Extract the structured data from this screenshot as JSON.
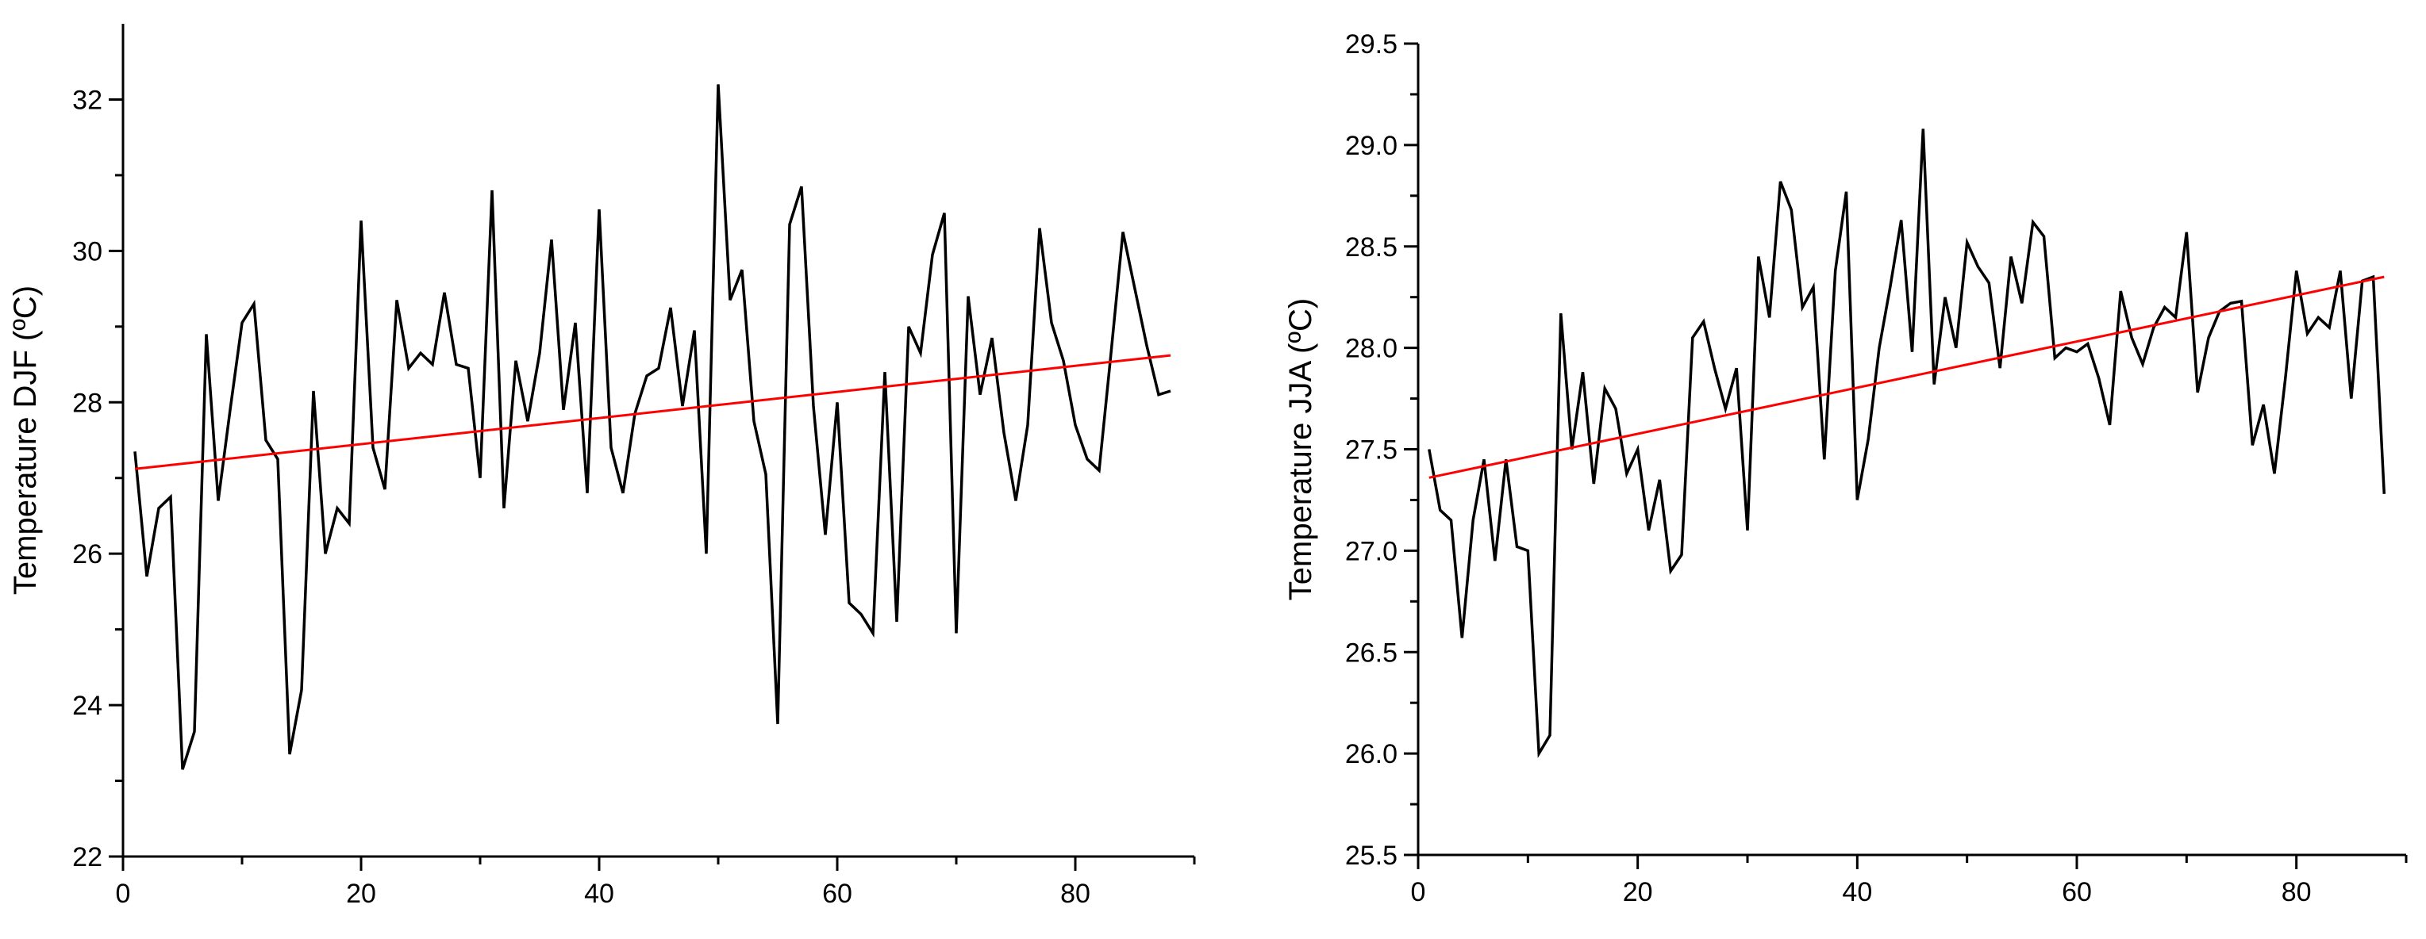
{
  "chart_data": [
    {
      "type": "line",
      "title": "",
      "xlabel": "",
      "ylabel": "Temperature DJF (ºC)",
      "xlim": [
        0,
        90
      ],
      "ylim": [
        22,
        33
      ],
      "x_ticks": [
        "0",
        "20",
        "40",
        "60",
        "80"
      ],
      "y_ticks": [
        "22",
        "24",
        "26",
        "28",
        "30",
        "32"
      ],
      "grid": false,
      "legend": "none",
      "series": [
        {
          "color": "#000000",
          "x": [
            1,
            2,
            3,
            4,
            5,
            6,
            7,
            8,
            9,
            10,
            11,
            12,
            13,
            14,
            15,
            16,
            17,
            18,
            19,
            20,
            21,
            22,
            23,
            24,
            25,
            26,
            27,
            28,
            29,
            30,
            31,
            32,
            33,
            34,
            35,
            36,
            37,
            38,
            39,
            40,
            41,
            42,
            43,
            44,
            45,
            46,
            47,
            48,
            49,
            50,
            51,
            52,
            53,
            54,
            55,
            56,
            57,
            58,
            59,
            60,
            61,
            62,
            63,
            64,
            65,
            66,
            67,
            68,
            69,
            70,
            71,
            72,
            73,
            74,
            75,
            76,
            77,
            78,
            79,
            80,
            81,
            82,
            83,
            84,
            85,
            86,
            87,
            88
          ],
          "values": [
            27.35,
            25.7,
            26.6,
            26.75,
            23.15,
            23.65,
            28.9,
            26.7,
            27.9,
            29.05,
            29.3,
            27.5,
            27.25,
            23.35,
            24.2,
            28.15,
            26.0,
            26.6,
            26.4,
            30.4,
            27.4,
            26.85,
            29.35,
            28.45,
            28.65,
            28.5,
            29.45,
            28.5,
            28.45,
            27.0,
            30.8,
            26.6,
            28.55,
            27.75,
            28.65,
            30.15,
            27.9,
            29.05,
            26.8,
            30.55,
            27.4,
            26.8,
            27.85,
            28.35,
            28.45,
            29.25,
            27.95,
            28.95,
            26.0,
            32.2,
            29.35,
            29.75,
            27.75,
            27.05,
            23.75,
            30.35,
            30.85,
            27.95,
            26.25,
            28.0,
            25.35,
            25.2,
            24.95,
            28.4,
            25.1,
            29.0,
            28.65,
            29.95,
            30.5,
            24.95,
            29.4,
            28.1,
            28.85,
            27.6,
            26.7,
            27.7,
            30.3,
            29.05,
            28.55,
            27.7,
            27.25,
            27.1,
            28.65,
            30.25,
            29.5,
            28.75,
            28.1,
            28.15
          ]
        },
        {
          "color": "#ff0000",
          "x": [
            1,
            88
          ],
          "values": [
            27.12,
            28.62
          ]
        }
      ]
    },
    {
      "type": "line",
      "title": "",
      "xlabel": "",
      "ylabel": "Temperature JJA (ºC)",
      "xlim": [
        0,
        90
      ],
      "ylim": [
        25.5,
        29.5
      ],
      "x_ticks": [
        "0",
        "20",
        "40",
        "60",
        "80"
      ],
      "y_ticks": [
        "25.5",
        "26.0",
        "26.5",
        "27.0",
        "27.5",
        "28.0",
        "28.5",
        "29.0",
        "29.5"
      ],
      "grid": false,
      "legend": "none",
      "series": [
        {
          "color": "#000000",
          "x": [
            1,
            2,
            3,
            4,
            5,
            6,
            7,
            8,
            9,
            10,
            11,
            12,
            13,
            14,
            15,
            16,
            17,
            18,
            19,
            20,
            21,
            22,
            23,
            24,
            25,
            26,
            27,
            28,
            29,
            30,
            31,
            32,
            33,
            34,
            35,
            36,
            37,
            38,
            39,
            40,
            41,
            42,
            43,
            44,
            45,
            46,
            47,
            48,
            49,
            50,
            51,
            52,
            53,
            54,
            55,
            56,
            57,
            58,
            59,
            60,
            61,
            62,
            63,
            64,
            65,
            66,
            67,
            68,
            69,
            70,
            71,
            72,
            73,
            74,
            75,
            76,
            77,
            78,
            79,
            80,
            81,
            82,
            83,
            84,
            85,
            86,
            87,
            88
          ],
          "values": [
            27.5,
            27.2,
            27.15,
            26.57,
            27.15,
            27.45,
            26.95,
            27.45,
            27.02,
            27.0,
            26.0,
            26.09,
            28.17,
            27.5,
            27.88,
            27.33,
            27.8,
            27.7,
            27.38,
            27.5,
            27.1,
            27.35,
            26.9,
            26.98,
            28.05,
            28.13,
            27.9,
            27.7,
            27.9,
            27.1,
            28.45,
            28.15,
            28.82,
            28.68,
            28.2,
            28.3,
            27.45,
            28.38,
            28.77,
            27.25,
            27.55,
            28.0,
            28.3,
            28.63,
            27.98,
            29.08,
            27.82,
            28.25,
            28.0,
            28.52,
            28.4,
            28.32,
            27.9,
            28.45,
            28.22,
            28.62,
            28.55,
            27.95,
            28.0,
            27.98,
            28.02,
            27.85,
            27.62,
            28.28,
            28.05,
            27.92,
            28.1,
            28.2,
            28.15,
            28.57,
            27.78,
            28.05,
            28.18,
            28.22,
            28.23,
            27.52,
            27.72,
            27.38,
            27.85,
            28.38,
            28.07,
            28.15,
            28.1,
            28.38,
            27.75,
            28.33,
            28.35,
            27.28
          ]
        },
        {
          "color": "#ff0000",
          "x": [
            1,
            88
          ],
          "values": [
            27.36,
            28.35
          ]
        }
      ]
    }
  ]
}
